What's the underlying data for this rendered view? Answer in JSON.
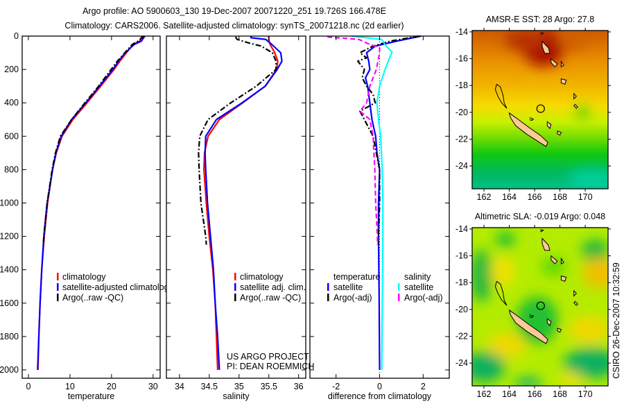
{
  "title": {
    "line1": "Argo profile: AO 5900603_130 19-Dec-2007 20071220_251 19.726S 166.478E",
    "line2": "Climatology: CARS2006. Satellite-adjusted climatology: synTS_20071218.nc (2d earlier)"
  },
  "annotations": {
    "project": "US ARGO PROJECT",
    "pi": "PI: DEAN ROEMMICH",
    "timestamp": "CSIRO 26-Dec-2007 10:32:59"
  },
  "chart_data": [
    {
      "type": "line",
      "id": "temperature",
      "xlabel": "temperature",
      "ylabel": "",
      "xlim": [
        -1.5,
        31.7
      ],
      "ylim": [
        0,
        2050
      ],
      "y_reversed": true,
      "xticks": [
        0,
        10,
        20,
        30
      ],
      "xtick_labels": [
        "0",
        "10",
        "20",
        "30"
      ],
      "yticks": [
        0,
        200,
        400,
        600,
        800,
        1000,
        1200,
        1400,
        1600,
        1800,
        2000
      ],
      "ytick_labels": [
        "0",
        "200",
        "400",
        "600",
        "800",
        "1000",
        "1200",
        "1400",
        "1600",
        "1800",
        "2000"
      ],
      "grid": false,
      "legend": {
        "placement": "lower-center",
        "headers": []
      },
      "series": [
        {
          "name": "climatology",
          "label": "climatology",
          "color": "#ff0000",
          "style": "solid",
          "depth": [
            0,
            30,
            50,
            100,
            150,
            200,
            300,
            400,
            500,
            600,
            700,
            800,
            1000,
            1200,
            1400,
            1600,
            1800,
            2000
          ],
          "values": [
            27.3,
            26.8,
            25.2,
            23.6,
            22.0,
            20.6,
            17.4,
            14.1,
            10.7,
            8.1,
            6.7,
            5.8,
            4.6,
            3.8,
            3.2,
            2.8,
            2.5,
            2.3
          ]
        },
        {
          "name": "satellite-adjusted climatology",
          "label": "satellite-adjusted climatology",
          "color": "#0000ff",
          "style": "solid",
          "depth": [
            0,
            30,
            50,
            100,
            150,
            200,
            300,
            400,
            500,
            600,
            700,
            800,
            1000,
            1200,
            1400,
            1600,
            1800,
            2000
          ],
          "values": [
            28.0,
            27.2,
            25.5,
            23.3,
            21.7,
            20.3,
            17.1,
            13.8,
            10.4,
            7.9,
            6.6,
            5.8,
            4.5,
            3.7,
            3.2,
            2.8,
            2.5,
            2.2
          ]
        },
        {
          "name": "Argo(..raw -QC)",
          "label": "Argo(..raw -QC)",
          "color": "#000000",
          "style": "dashdot",
          "depth": [
            0,
            30,
            50,
            100,
            150,
            200,
            300,
            400,
            500,
            600,
            700,
            800,
            1000,
            1200,
            1250
          ],
          "values": [
            27.8,
            26.4,
            25.0,
            23.2,
            21.4,
            19.9,
            16.9,
            13.6,
            10.4,
            7.7,
            6.5,
            5.7,
            4.5,
            3.7,
            3.6
          ]
        }
      ]
    },
    {
      "type": "line",
      "id": "salinity",
      "xlabel": "salinity",
      "ylabel": "",
      "xlim": [
        33.78,
        36.12
      ],
      "ylim": [
        0,
        2050
      ],
      "y_reversed": true,
      "xticks": [
        34,
        34.5,
        35,
        35.5,
        36
      ],
      "xtick_labels": [
        "34",
        "34.5",
        "35",
        "35.5",
        "36"
      ],
      "yticks": [
        0,
        200,
        400,
        600,
        800,
        1000,
        1200,
        1400,
        1600,
        1800,
        2000
      ],
      "ytick_labels": [],
      "grid": false,
      "legend": {
        "placement": "lower-center",
        "headers": []
      },
      "series": [
        {
          "name": "climatology",
          "label": "climatology",
          "color": "#ff0000",
          "style": "solid",
          "depth": [
            0,
            10,
            20,
            50,
            100,
            150,
            200,
            300,
            400,
            500,
            600,
            700,
            800,
            1000,
            1200,
            1400,
            1600,
            1800,
            2000
          ],
          "values": [
            35.5,
            35.5,
            35.5,
            35.52,
            35.6,
            35.65,
            35.63,
            35.44,
            35.06,
            34.67,
            34.48,
            34.42,
            34.41,
            34.45,
            34.5,
            34.56,
            34.6,
            34.62,
            34.64
          ]
        },
        {
          "name": "satellite adj. clim.",
          "label": "satellite adj. clim.",
          "color": "#0000ff",
          "style": "solid",
          "depth": [
            0,
            10,
            20,
            50,
            100,
            150,
            200,
            300,
            400,
            500,
            600,
            700,
            800,
            1000,
            1200,
            1400,
            1600,
            1800,
            2000
          ],
          "values": [
            35.2,
            35.2,
            35.45,
            35.55,
            35.7,
            35.72,
            35.64,
            35.44,
            35.05,
            34.62,
            34.44,
            34.43,
            34.44,
            34.47,
            34.52,
            34.57,
            34.6,
            34.64,
            34.67
          ]
        },
        {
          "name": "Argo(..raw -QC)",
          "label": "Argo(..raw -QC)",
          "color": "#000000",
          "style": "dashdot",
          "depth": [
            5,
            20,
            40,
            60,
            100,
            150,
            200,
            300,
            400,
            500,
            600,
            700,
            800,
            1000,
            1200,
            1250
          ],
          "values": [
            34.94,
            34.97,
            35.15,
            35.37,
            35.56,
            35.62,
            35.62,
            35.29,
            34.86,
            34.48,
            34.34,
            34.32,
            34.33,
            34.36,
            34.44,
            34.45
          ]
        }
      ]
    },
    {
      "type": "line",
      "id": "difference",
      "xlabel": "difference from climatology",
      "ylabel": "",
      "xlim": [
        -3.2,
        3.2
      ],
      "ylim": [
        0,
        2050
      ],
      "y_reversed": true,
      "xticks": [
        -2,
        0,
        2
      ],
      "xtick_labels": [
        "-2",
        "0",
        "2"
      ],
      "yticks": [
        0,
        200,
        400,
        600,
        800,
        1000,
        1200,
        1400,
        1600,
        1800,
        2000
      ],
      "ytick_labels": [],
      "zero_line": true,
      "grid": false,
      "legend": {
        "placement": "lower-center",
        "headers": [
          "temperature",
          "salinity"
        ]
      },
      "series": [
        {
          "name": "temperature satellite",
          "group": "temperature",
          "label": "satellite",
          "color": "#0000ff",
          "style": "solid",
          "depth": [
            0,
            30,
            60,
            100,
            150,
            200,
            250,
            300,
            400,
            500,
            600,
            700,
            800,
            1000,
            1200,
            1600,
            2000
          ],
          "values": [
            1.9,
            0.8,
            -0.2,
            -0.6,
            -0.5,
            -0.45,
            -0.65,
            -0.55,
            -0.45,
            -0.35,
            -0.18,
            -0.12,
            0,
            -0.05,
            -0.05,
            -0.02,
            0
          ]
        },
        {
          "name": "temperature Argo(-adj)",
          "group": "temperature",
          "label": "Argo(-adj)",
          "color": "#000000",
          "style": "dashdot",
          "depth": [
            0,
            30,
            60,
            100,
            130,
            150,
            200,
            250,
            300,
            350,
            400,
            450,
            500,
            600,
            700,
            800,
            1000,
            1200,
            1250
          ],
          "values": [
            1.8,
            0.5,
            -0.3,
            -0.9,
            -0.6,
            -1.0,
            -0.7,
            -0.8,
            -0.6,
            -0.3,
            -0.2,
            -0.9,
            -0.7,
            -0.3,
            -0.15,
            0,
            0,
            -0.05,
            -0.05
          ]
        },
        {
          "name": "salinity satellite",
          "group": "salinity",
          "label": "satellite",
          "color": "#00ffff",
          "style": "solid",
          "depth": [
            0,
            20,
            60,
            95,
            150,
            200,
            300,
            400,
            500,
            600,
            800,
            1000,
            1200,
            2000
          ],
          "values": [
            -1.3,
            0.1,
            0.3,
            0.57,
            0.4,
            0.25,
            0,
            -0.12,
            -0.05,
            0.05,
            0.12,
            0.15,
            0.15,
            0.1
          ]
        },
        {
          "name": "salinity Argo(-adj)",
          "group": "salinity",
          "label": "Argo(-adj)",
          "color": "#ff00ff",
          "style": "dashed",
          "depth": [
            5,
            20,
            50,
            70,
            100,
            200,
            300,
            400,
            450,
            500,
            600,
            800,
            1000,
            1200,
            1250
          ],
          "values": [
            -2.4,
            -0.95,
            -0.45,
            0,
            0,
            -0.15,
            -0.45,
            -0.6,
            -0.9,
            -0.45,
            -0.3,
            -0.22,
            -0.18,
            -0.1,
            -0.1
          ]
        }
      ]
    },
    {
      "type": "heatmap",
      "id": "sst-map",
      "title": "AMSR-E SST: 28 Argo: 27.8",
      "field": "AMSR-E SST",
      "field_value": 28,
      "argo_value": 27.8,
      "xlim": [
        161.07,
        171.8
      ],
      "ylim": [
        -25.7,
        -13.9
      ],
      "xticks": [
        162,
        164,
        166,
        168,
        170
      ],
      "xtick_labels": [
        "162",
        "164",
        "166",
        "168",
        "170"
      ],
      "yticks": [
        -14,
        -16,
        -18,
        -20,
        -22,
        -24
      ],
      "ytick_labels": [
        "-14",
        "-16",
        "-18",
        "-20",
        "-22",
        "-24"
      ],
      "profile_location": {
        "lon": 166.478,
        "lat": -19.726
      }
    },
    {
      "type": "heatmap",
      "id": "sla-map",
      "title": "Altimetric SLA: -0.019 Argo: 0.048",
      "field": "Altimetric SLA",
      "field_value": -0.019,
      "argo_value": 0.048,
      "xlim": [
        161.07,
        171.8
      ],
      "ylim": [
        -25.7,
        -13.9
      ],
      "xticks": [
        162,
        164,
        166,
        168,
        170
      ],
      "xtick_labels": [
        "162",
        "164",
        "166",
        "168",
        "170"
      ],
      "yticks": [
        -14,
        -16,
        -18,
        -20,
        -22,
        -24
      ],
      "ytick_labels": [
        "-14",
        "-16",
        "-18",
        "-20",
        "-22",
        "-24"
      ],
      "profile_location": {
        "lon": 166.478,
        "lat": -19.726
      }
    }
  ]
}
